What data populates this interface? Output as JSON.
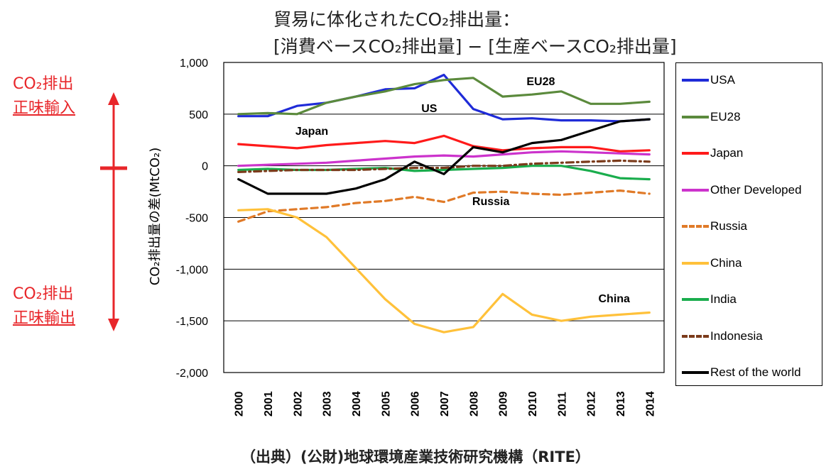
{
  "title": {
    "line1": "貿易に体化されたCO₂排出量：",
    "line2": "[消費ベースCO₂排出量] − [生産ベースCO₂排出量]"
  },
  "side_labels": {
    "top_line1": "CO₂排出",
    "top_line2": "正味輸入",
    "bottom_line1": "CO₂排出",
    "bottom_line2": "正味輸出"
  },
  "source": "（出典）(公財)地球環境産業技術研究機構（RITE）",
  "colors": {
    "arrow": "#e8262a"
  },
  "chart_data": {
    "type": "line",
    "ylabel": "CO₂排出量の差(MtCO₂)",
    "xlabel": "",
    "ylim": [
      -2000,
      1000
    ],
    "yticks": [
      1000,
      500,
      0,
      -500,
      -1000,
      -1500,
      -2000
    ],
    "ytick_labels": [
      "1,000",
      "500",
      "0",
      "-500",
      "-1,000",
      "-1,500",
      "-2,000"
    ],
    "x": [
      "2000",
      "2001",
      "2002",
      "2003",
      "2004",
      "2005",
      "2006",
      "2007",
      "2008",
      "2009",
      "2010",
      "2011",
      "2012",
      "2013",
      "2014"
    ],
    "grid": "horizontal",
    "legend_position": "right",
    "series": [
      {
        "name": "USA",
        "color": "#1f2bd8",
        "dash": "solid",
        "values": [
          480,
          480,
          580,
          610,
          670,
          740,
          750,
          880,
          550,
          450,
          460,
          440,
          440,
          430,
          450
        ]
      },
      {
        "name": "EU28",
        "color": "#5b8a3c",
        "dash": "solid",
        "values": [
          500,
          510,
          500,
          610,
          670,
          720,
          790,
          830,
          850,
          670,
          690,
          720,
          600,
          600,
          620
        ]
      },
      {
        "name": "Japan",
        "color": "#ff1a1a",
        "dash": "solid",
        "values": [
          210,
          190,
          170,
          200,
          220,
          240,
          220,
          290,
          190,
          150,
          170,
          180,
          180,
          140,
          150
        ]
      },
      {
        "name": "Other Developed",
        "color": "#cc33cc",
        "dash": "solid",
        "values": [
          0,
          10,
          20,
          30,
          50,
          70,
          90,
          100,
          90,
          110,
          130,
          140,
          130,
          120,
          110
        ]
      },
      {
        "name": "Russia",
        "color": "#e07a28",
        "dash": "dash",
        "values": [
          -540,
          -440,
          -420,
          -400,
          -360,
          -340,
          -300,
          -350,
          -260,
          -250,
          -270,
          -280,
          -260,
          -240,
          -270
        ]
      },
      {
        "name": "China",
        "color": "#ffc13a",
        "dash": "solid",
        "values": [
          -430,
          -420,
          -500,
          -690,
          -990,
          -1290,
          -1530,
          -1610,
          -1560,
          -1240,
          -1440,
          -1500,
          -1460,
          -1440,
          -1420
        ]
      },
      {
        "name": "India",
        "color": "#1aad4d",
        "dash": "solid",
        "values": [
          -40,
          -30,
          -40,
          -40,
          -30,
          -20,
          -50,
          -40,
          -30,
          -20,
          0,
          0,
          -50,
          -120,
          -130
        ]
      },
      {
        "name": "Indonesia",
        "color": "#7b3b1b",
        "dash": "dashdot",
        "values": [
          -60,
          -50,
          -40,
          -40,
          -40,
          -30,
          -20,
          -20,
          0,
          0,
          20,
          30,
          40,
          50,
          40
        ]
      },
      {
        "name": "Rest of the world",
        "color": "#000000",
        "dash": "solid",
        "values": [
          -130,
          -270,
          -270,
          -270,
          -220,
          -130,
          40,
          -80,
          180,
          130,
          220,
          250,
          340,
          430,
          450
        ]
      }
    ],
    "annotations": [
      {
        "text": "EU28",
        "x": "2010.3",
        "y": 780
      },
      {
        "text": "US",
        "x": "2006.5",
        "y": 520
      },
      {
        "text": "Japan",
        "x": "2002.5",
        "y": 300
      },
      {
        "text": "Russia",
        "x": "2008.6",
        "y": -380
      },
      {
        "text": "China",
        "x": "2012.8",
        "y": -1320
      }
    ]
  }
}
